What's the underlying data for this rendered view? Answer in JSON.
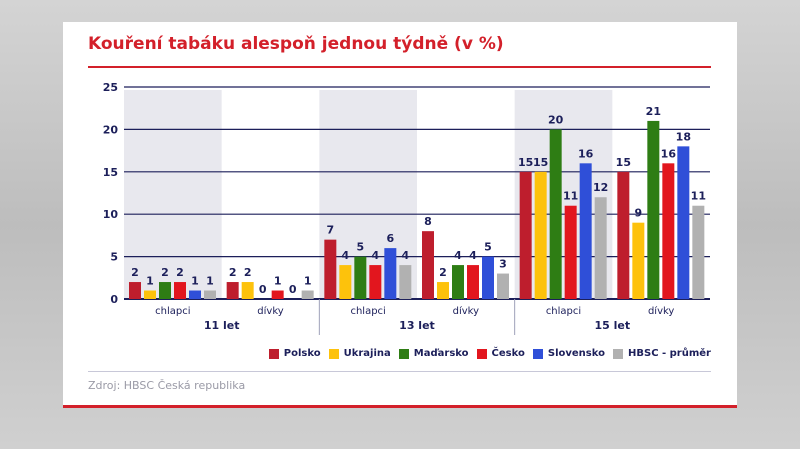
{
  "chart_data": {
    "type": "bar",
    "title": "Kouření tabáku alespoň jednou týdně (v %)",
    "ylim": [
      0,
      25
    ],
    "yticks": [
      0,
      5,
      10,
      15,
      20,
      25
    ],
    "grid": true,
    "legend_position": "bottom-right",
    "groups": [
      {
        "age": "11 let",
        "subgroups": [
          "chlapci",
          "dívky"
        ]
      },
      {
        "age": "13 let",
        "subgroups": [
          "chlapci",
          "dívky"
        ]
      },
      {
        "age": "15 let",
        "subgroups": [
          "chlapci",
          "dívky"
        ]
      }
    ],
    "categories": [
      "11 let chlapci",
      "11 let dívky",
      "13 let chlapci",
      "13 let dívky",
      "15 let chlapci",
      "15 let dívky"
    ],
    "series": [
      {
        "name": "Polsko",
        "color": "#be1e2d",
        "values": [
          2,
          2,
          7,
          8,
          15,
          15
        ]
      },
      {
        "name": "Ukrajina",
        "color": "#fdc20c",
        "values": [
          1,
          2,
          4,
          2,
          15,
          9
        ]
      },
      {
        "name": "Maďarsko",
        "color": "#2e7d14",
        "values": [
          2,
          0,
          5,
          4,
          20,
          21
        ]
      },
      {
        "name": "Česko",
        "color": "#e2161e",
        "values": [
          2,
          1,
          4,
          4,
          11,
          16
        ]
      },
      {
        "name": "Slovensko",
        "color": "#2f4fd8",
        "values": [
          1,
          0,
          6,
          5,
          16,
          18
        ]
      },
      {
        "name": "HBSC - průměr",
        "color": "#b1b1b1",
        "values": [
          1,
          1,
          4,
          3,
          12,
          11
        ]
      }
    ]
  },
  "source": "Zdroj: HBSC Česká republika"
}
